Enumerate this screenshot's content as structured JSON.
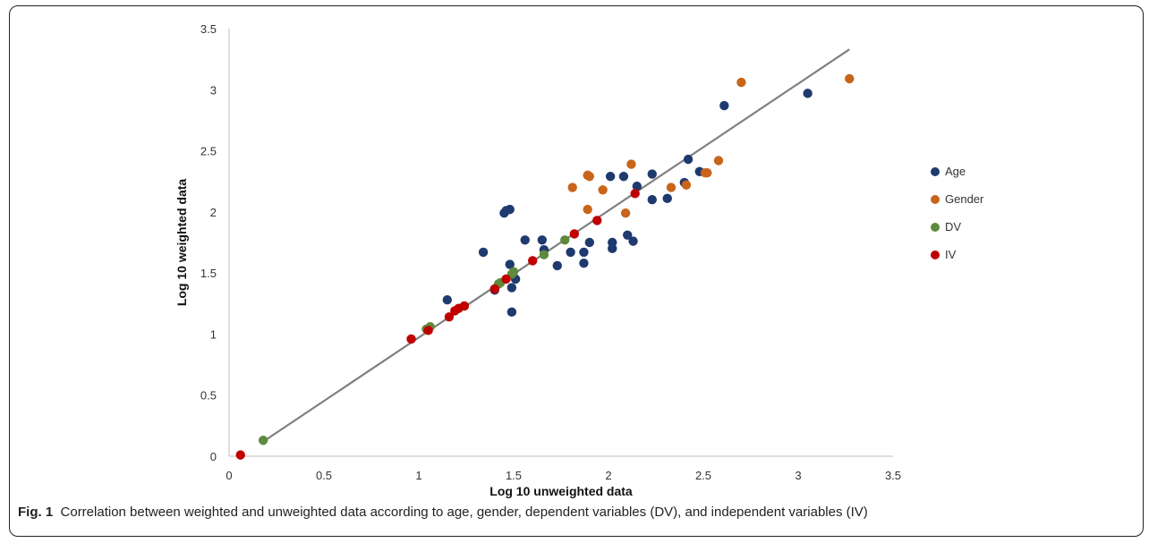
{
  "caption": {
    "label": "Fig. 1",
    "text": "Correlation between weighted and unweighted data according to age, gender, dependent variables (DV), and independent variables (IV)"
  },
  "chart_data": {
    "type": "scatter",
    "title": "",
    "xlabel": "Log 10 unweighted data",
    "ylabel": "Log 10 weighted data",
    "xlim": [
      0,
      3.5
    ],
    "ylim": [
      0,
      3.5
    ],
    "xticks": [
      "0",
      "0.5",
      "1",
      "1.5",
      "2",
      "2.5",
      "3",
      "3.5"
    ],
    "yticks": [
      "0",
      "0.5",
      "1",
      "1.5",
      "2",
      "2.5",
      "3",
      "3.5"
    ],
    "grid": false,
    "legend_position": "right",
    "trendline": {
      "x": [
        0.18,
        3.27
      ],
      "y": [
        0.12,
        3.33
      ],
      "color": "#808080"
    },
    "series": [
      {
        "name": "Age",
        "color": "#1f3a6e",
        "x": [
          1.15,
          1.34,
          1.4,
          1.45,
          1.46,
          1.48,
          1.48,
          1.49,
          1.49,
          1.51,
          1.56,
          1.65,
          1.66,
          1.73,
          1.8,
          1.87,
          1.87,
          1.9,
          2.01,
          2.02,
          2.02,
          2.08,
          2.1,
          2.13,
          2.15,
          2.23,
          2.23,
          2.31,
          2.4,
          2.42,
          2.48,
          2.61,
          3.05
        ],
        "y": [
          1.28,
          1.67,
          1.36,
          1.99,
          2.01,
          2.02,
          1.57,
          1.38,
          1.18,
          1.45,
          1.77,
          1.77,
          1.69,
          1.56,
          1.67,
          1.67,
          1.58,
          1.75,
          2.29,
          1.75,
          1.7,
          2.29,
          1.81,
          1.76,
          2.21,
          2.31,
          2.1,
          2.11,
          2.24,
          2.43,
          2.33,
          2.87,
          2.97
        ]
      },
      {
        "name": "Gender",
        "color": "#c8651b",
        "x": [
          1.81,
          1.89,
          1.89,
          1.9,
          1.97,
          2.09,
          2.12,
          2.33,
          2.41,
          2.51,
          2.52,
          2.58,
          2.7,
          3.27
        ],
        "y": [
          2.2,
          2.3,
          2.02,
          2.29,
          2.18,
          1.99,
          2.39,
          2.2,
          2.22,
          2.32,
          2.32,
          2.42,
          3.06,
          3.09
        ]
      },
      {
        "name": "DV",
        "color": "#5d8a3c",
        "x": [
          0.18,
          1.04,
          1.06,
          1.24,
          1.42,
          1.43,
          1.49,
          1.5,
          1.66,
          1.77
        ],
        "y": [
          0.13,
          1.04,
          1.06,
          1.23,
          1.41,
          1.42,
          1.49,
          1.51,
          1.65,
          1.77
        ]
      },
      {
        "name": "IV",
        "color": "#c00000",
        "x": [
          0.06,
          0.96,
          1.05,
          1.16,
          1.19,
          1.21,
          1.24,
          1.4,
          1.46,
          1.6,
          1.82,
          1.94,
          2.14
        ],
        "y": [
          0.01,
          0.96,
          1.03,
          1.14,
          1.19,
          1.21,
          1.23,
          1.37,
          1.45,
          1.6,
          1.82,
          1.93,
          2.15
        ]
      }
    ]
  }
}
